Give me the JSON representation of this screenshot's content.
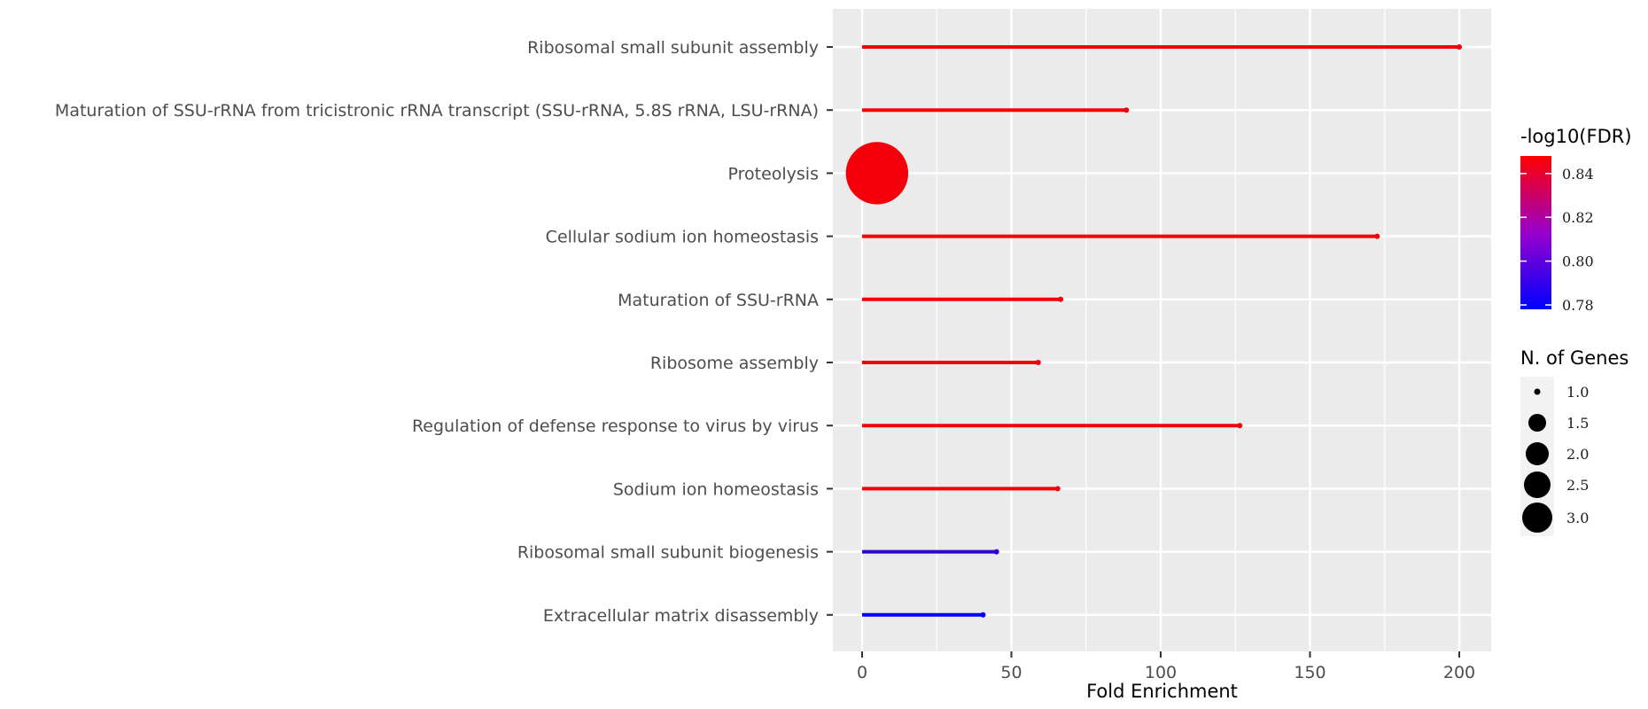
{
  "chart_data": {
    "type": "lollipop",
    "xlabel": "Fold Enrichment",
    "xlim": [
      -10,
      210
    ],
    "x_ticks": [
      0,
      50,
      100,
      150,
      200
    ],
    "grid": true,
    "categories": [
      "Ribosomal small subunit assembly",
      "Maturation of SSU-rRNA from tricistronic rRNA transcript (SSU-rRNA, 5.8S rRNA, LSU-rRNA)",
      "Proteolysis",
      "Cellular sodium ion homeostasis",
      "Maturation of SSU-rRNA",
      "Ribosome assembly",
      "Regulation of defense response to virus by virus",
      "Sodium ion homeostasis",
      "Ribosomal small subunit biogenesis",
      "Extracellular matrix disassembly"
    ],
    "fold_enrichment": [
      200,
      88.5,
      5,
      172.5,
      66.5,
      59,
      126.5,
      65.5,
      45,
      40.5
    ],
    "n_genes": [
      1,
      1,
      3,
      1,
      1,
      1,
      1,
      1,
      1,
      1
    ],
    "neg_log10_fdr": [
      0.845,
      0.845,
      0.845,
      0.845,
      0.845,
      0.845,
      0.845,
      0.845,
      0.79,
      0.778
    ],
    "color_legend": {
      "title": "-log10(FDR)",
      "range": [
        0.778,
        0.848
      ],
      "ticks": [
        0.78,
        0.8,
        0.82,
        0.84
      ],
      "tick_labels": [
        "0.78",
        "0.80",
        "0.82",
        "0.84"
      ],
      "low_color": "#0000ff",
      "high_color": "#ff0000"
    },
    "size_legend": {
      "title": "N. of Genes",
      "values": [
        1.0,
        1.5,
        2.0,
        2.5,
        3.0
      ],
      "labels": [
        "1.0",
        "1.5",
        "2.0",
        "2.5",
        "3.0"
      ]
    },
    "panel_background": "#ebebeb",
    "grid_color": "#ffffff"
  }
}
